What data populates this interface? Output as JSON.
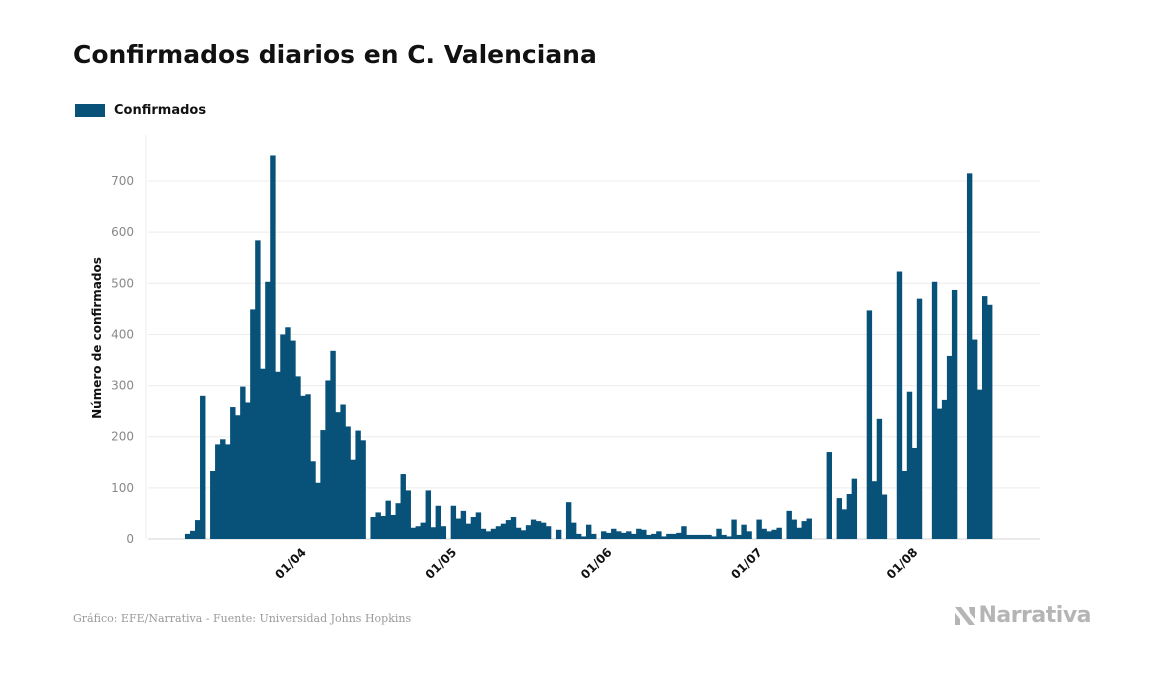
{
  "chart_data": {
    "type": "bar",
    "title": "Confirmados diarios en C. Valenciana",
    "ylabel": "Número de confirmados",
    "xlabel": "",
    "ylim": [
      0,
      790
    ],
    "yticks": [
      0,
      100,
      200,
      300,
      400,
      500,
      600,
      700
    ],
    "grid": true,
    "legend_position": "top-left",
    "x_start": "2020-03-11",
    "xticks": [
      {
        "label": "01/04",
        "date": "2020-04-01"
      },
      {
        "label": "01/05",
        "date": "2020-05-01"
      },
      {
        "label": "01/06",
        "date": "2020-06-01"
      },
      {
        "label": "01/07",
        "date": "2020-07-01"
      },
      {
        "label": "01/08",
        "date": "2020-08-01"
      }
    ],
    "series": [
      {
        "name": "Confirmados",
        "color": "#08527a",
        "values": [
          10,
          16,
          37,
          280,
          0,
          133,
          185,
          195,
          185,
          258,
          242,
          298,
          267,
          449,
          584,
          333,
          503,
          750,
          327,
          400,
          414,
          388,
          318,
          280,
          283,
          152,
          110,
          213,
          310,
          368,
          248,
          263,
          220,
          155,
          212,
          193,
          0,
          43,
          52,
          45,
          75,
          47,
          70,
          127,
          95,
          22,
          25,
          32,
          95,
          23,
          65,
          25,
          0,
          65,
          40,
          55,
          30,
          43,
          52,
          20,
          15,
          20,
          25,
          30,
          37,
          43,
          22,
          17,
          27,
          38,
          35,
          32,
          25,
          0,
          18,
          0,
          72,
          32,
          10,
          5,
          28,
          10,
          0,
          15,
          12,
          20,
          15,
          12,
          15,
          10,
          20,
          18,
          8,
          10,
          15,
          5,
          10,
          10,
          12,
          25,
          8,
          8,
          8,
          8,
          8,
          5,
          20,
          8,
          5,
          38,
          8,
          28,
          15,
          0,
          38,
          20,
          15,
          18,
          22,
          0,
          55,
          38,
          22,
          35,
          40,
          0,
          0,
          0,
          170,
          0,
          80,
          58,
          88,
          118,
          0,
          0,
          447,
          113,
          235,
          87,
          0,
          0,
          523,
          133,
          288,
          178,
          470,
          0,
          0,
          503,
          255,
          272,
          358,
          487,
          0,
          0,
          715,
          390,
          292,
          475,
          458
        ]
      }
    ]
  },
  "footer": {
    "source": "Gráfico: EFE/Narrativa - Fuente: Universidad Johns Hopkins",
    "brand": "Narrativa"
  }
}
